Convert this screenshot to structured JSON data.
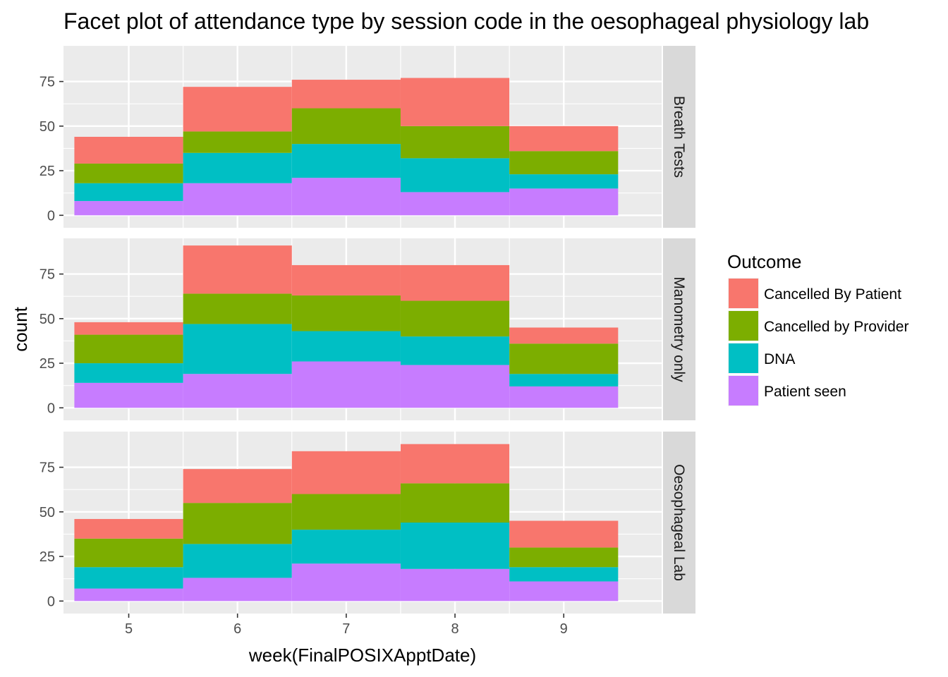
{
  "chart_data": {
    "type": "bar",
    "title": "Facet plot of attendance type by session code in the oesophageal physiology lab",
    "xlabel": "week(FinalPOSIXApptDate)",
    "ylabel": "count",
    "categories": [
      "5",
      "6",
      "7",
      "8",
      "9"
    ],
    "x_ticks": [
      "5",
      "6",
      "7",
      "8",
      "9"
    ],
    "y_ticks": [
      "0",
      "25",
      "50",
      "75"
    ],
    "ylim": [
      -7,
      95
    ],
    "stacked": true,
    "grid": true,
    "legend": {
      "title": "Outcome",
      "position": "right",
      "entries": [
        {
          "label": "Cancelled By Patient",
          "color": "#F8766D"
        },
        {
          "label": "Cancelled by Provider",
          "color": "#7CAE00"
        },
        {
          "label": "DNA",
          "color": "#00BFC4"
        },
        {
          "label": "Patient seen",
          "color": "#C77CFF"
        }
      ]
    },
    "facets": [
      {
        "label": "Breath Tests",
        "series": [
          {
            "name": "Patient seen",
            "values": [
              8,
              18,
              21,
              13,
              15
            ]
          },
          {
            "name": "DNA",
            "values": [
              10,
              17,
              19,
              19,
              8
            ]
          },
          {
            "name": "Cancelled by Provider",
            "values": [
              11,
              12,
              20,
              18,
              13
            ]
          },
          {
            "name": "Cancelled By Patient",
            "values": [
              15,
              25,
              16,
              27,
              14
            ]
          }
        ]
      },
      {
        "label": "Manometry only",
        "series": [
          {
            "name": "Patient seen",
            "values": [
              14,
              19,
              26,
              24,
              12
            ]
          },
          {
            "name": "DNA",
            "values": [
              11,
              28,
              17,
              16,
              7
            ]
          },
          {
            "name": "Cancelled by Provider",
            "values": [
              16,
              17,
              20,
              20,
              17
            ]
          },
          {
            "name": "Cancelled By Patient",
            "values": [
              7,
              27,
              17,
              20,
              9
            ]
          }
        ]
      },
      {
        "label": "Oesophageal Lab",
        "series": [
          {
            "name": "Patient seen",
            "values": [
              7,
              13,
              21,
              18,
              11
            ]
          },
          {
            "name": "DNA",
            "values": [
              12,
              19,
              19,
              26,
              8
            ]
          },
          {
            "name": "Cancelled by Provider",
            "values": [
              16,
              23,
              20,
              22,
              11
            ]
          },
          {
            "name": "Cancelled By Patient",
            "values": [
              11,
              19,
              24,
              22,
              15
            ]
          }
        ]
      }
    ]
  },
  "colors": {
    "panel_background": "#EBEBEB",
    "grid": "#FFFFFF",
    "strip_background": "#D9D9D9"
  }
}
